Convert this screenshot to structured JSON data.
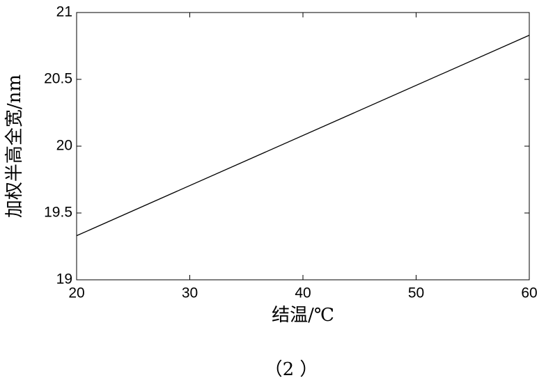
{
  "chart_data": {
    "type": "line",
    "x_label": "结温/℃",
    "y_label": "加权半高全宽/nm",
    "x": [
      20,
      60
    ],
    "values": [
      19.33,
      20.83
    ],
    "color": "#000000",
    "xlim": [
      20,
      60
    ],
    "xticks": [
      20,
      30,
      40,
      50,
      60
    ],
    "ylim": [
      19,
      21
    ],
    "yticks": [
      19,
      19.5,
      20,
      20.5,
      21
    ],
    "grid": false
  },
  "caption": "（2 ）"
}
